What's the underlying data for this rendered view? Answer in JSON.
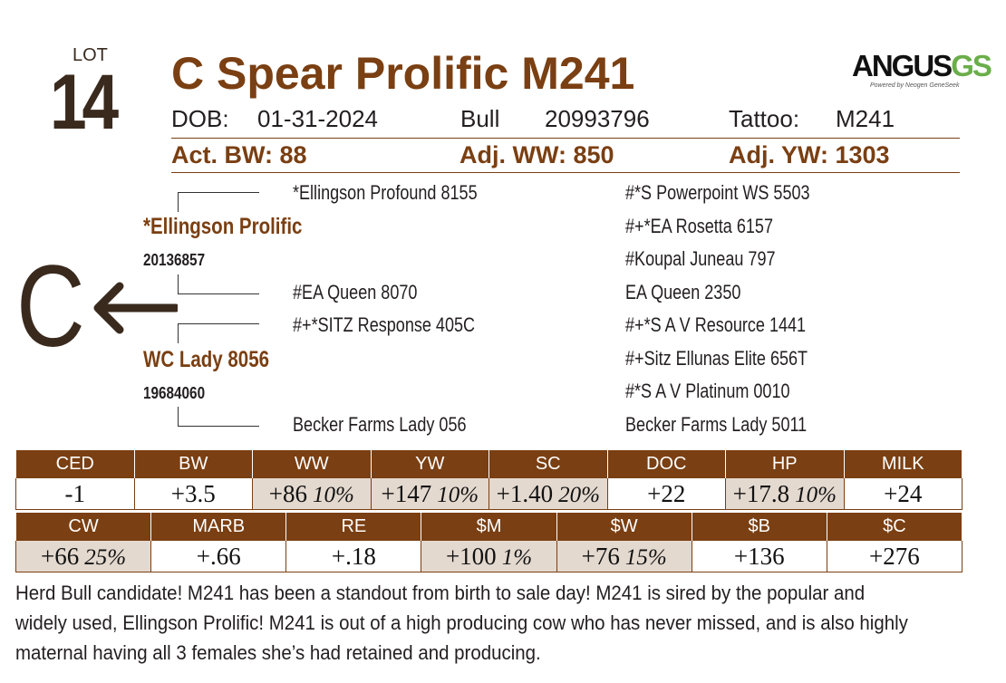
{
  "lot": {
    "label": "LOT",
    "number": "14"
  },
  "title": "C Spear Prolific M241",
  "logo": {
    "brand_main": "ANGUS",
    "brand_suffix": "GS",
    "tagline": "Powered by Neogen GeneSeek"
  },
  "info": {
    "dob_label": "DOB:",
    "dob": "01-31-2024",
    "type": "Bull",
    "reg": "20993796",
    "tattoo_label": "Tattoo:",
    "tattoo": "M241"
  },
  "weights": {
    "bw": "Act. BW: 88",
    "ww": "Adj. WW: 850",
    "yw": "Adj. YW: 1303"
  },
  "pedigree": {
    "sire": {
      "name": "*Ellingson Prolific",
      "reg": "20136857"
    },
    "dam": {
      "name": "WC Lady 8056",
      "reg": "19684060"
    },
    "ss": "*Ellingson Profound 8155",
    "sd": "#EA Queen 8070",
    "ds": "#+*SITZ Response 405C",
    "dd": "Becker Farms Lady 056",
    "g3": [
      "#*S Powerpoint WS 5503",
      "#+*EA Rosetta 6157",
      "#Koupal Juneau 797",
      "EA Queen 2350",
      "#+*S A V Resource 1441",
      "#+Sitz Ellunas Elite 656T",
      "#*S A V Platinum 0010",
      "Becker Farms Lady 5011"
    ]
  },
  "brand_letter": "C",
  "epd_row1": [
    {
      "label": "CED",
      "value": "-1",
      "pct": ""
    },
    {
      "label": "BW",
      "value": "+3.5",
      "pct": ""
    },
    {
      "label": "WW",
      "value": "+86",
      "pct": "10%"
    },
    {
      "label": "YW",
      "value": "+147",
      "pct": "10%"
    },
    {
      "label": "SC",
      "value": "+1.40",
      "pct": "20%"
    },
    {
      "label": "DOC",
      "value": "+22",
      "pct": ""
    },
    {
      "label": "HP",
      "value": "+17.8",
      "pct": "10%"
    },
    {
      "label": "MILK",
      "value": "+24",
      "pct": ""
    }
  ],
  "epd_row2": [
    {
      "label": "CW",
      "value": "+66",
      "pct": "25%"
    },
    {
      "label": "MARB",
      "value": "+.66",
      "pct": ""
    },
    {
      "label": "RE",
      "value": "+.18",
      "pct": ""
    },
    {
      "label": "$M",
      "value": "+100",
      "pct": "1%"
    },
    {
      "label": "$W",
      "value": "+76",
      "pct": "15%"
    },
    {
      "label": "$B",
      "value": "+136",
      "pct": ""
    },
    {
      "label": "$C",
      "value": "+276",
      "pct": ""
    }
  ],
  "description": "Herd Bull candidate! M241 has been a standout from birth to sale day! M241 is sired by the popular and widely used, Ellingson Prolific! M241 is out of a high producing cow who has never missed, and is also highly maternal having all 3 females she’s had retained and producing."
}
